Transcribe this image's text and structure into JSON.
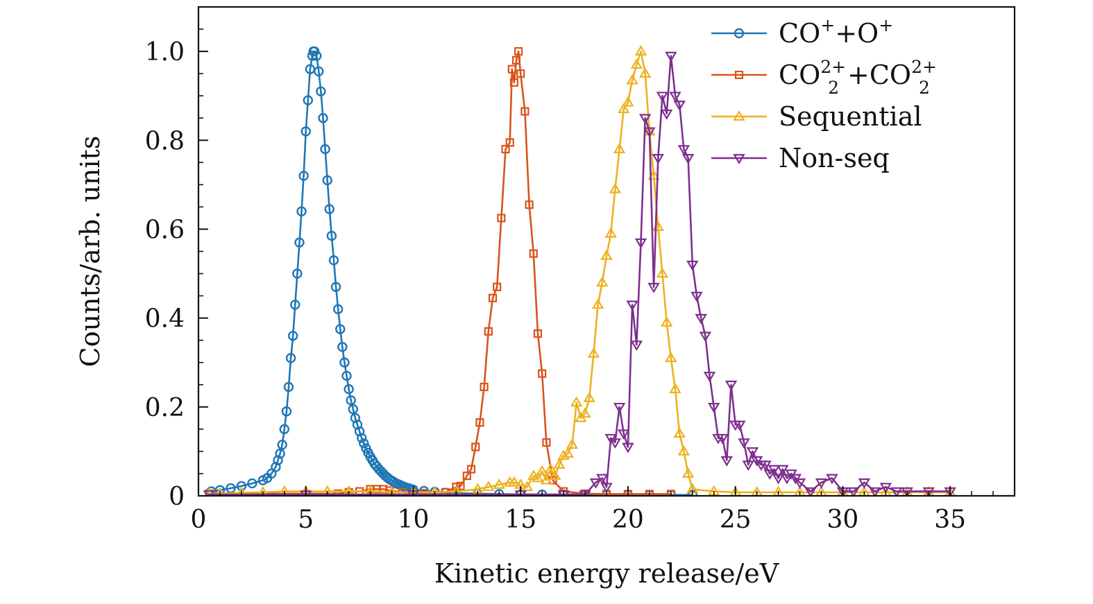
{
  "chart_data": {
    "type": "line",
    "xlabel": "Kinetic energy release/eV",
    "ylabel": "Counts/arb. units",
    "xlim": [
      0,
      38
    ],
    "ylim": [
      0,
      1.1
    ],
    "x_ticks": [
      0,
      5,
      10,
      15,
      20,
      25,
      30,
      35
    ],
    "y_ticks": [
      0,
      0.2,
      0.4,
      0.6,
      0.8,
      1.0
    ],
    "x_tick_labels": [
      "0",
      "5",
      "10",
      "15",
      "20",
      "25",
      "30",
      "35"
    ],
    "y_tick_labels": [
      "0",
      "0.2",
      "0.4",
      "0.6",
      "0.8",
      "1.0"
    ],
    "legend_position": "top-right",
    "grid": false,
    "series": [
      {
        "name": "CO⁺+O⁺",
        "legend": {
          "base": "CO",
          "sup1": "+",
          "mid": "+O",
          "sup2": "+"
        },
        "color": "#1f77b4",
        "marker": "circle",
        "x": [
          0.6,
          1.0,
          1.5,
          2.0,
          2.5,
          3.0,
          3.2,
          3.4,
          3.6,
          3.7,
          3.8,
          3.9,
          4.0,
          4.1,
          4.2,
          4.3,
          4.4,
          4.5,
          4.6,
          4.7,
          4.8,
          4.9,
          5.0,
          5.1,
          5.2,
          5.3,
          5.35,
          5.4,
          5.5,
          5.6,
          5.7,
          5.8,
          5.9,
          6.0,
          6.1,
          6.2,
          6.3,
          6.4,
          6.5,
          6.6,
          6.7,
          6.8,
          6.9,
          7.0,
          7.1,
          7.2,
          7.3,
          7.4,
          7.5,
          7.6,
          7.7,
          7.8,
          7.9,
          8.0,
          8.1,
          8.2,
          8.3,
          8.4,
          8.5,
          8.6,
          8.7,
          8.8,
          8.9,
          9.0,
          9.1,
          9.2,
          9.3,
          9.4,
          9.5,
          9.6,
          9.7,
          9.8,
          9.9,
          10.0,
          10.5,
          11.0,
          11.5,
          12.0,
          13,
          14,
          15,
          16,
          17,
          18,
          19,
          20,
          21,
          22,
          23
        ],
        "y": [
          0.01,
          0.013,
          0.017,
          0.022,
          0.028,
          0.035,
          0.04,
          0.05,
          0.065,
          0.08,
          0.095,
          0.115,
          0.15,
          0.19,
          0.245,
          0.31,
          0.36,
          0.43,
          0.5,
          0.57,
          0.64,
          0.72,
          0.82,
          0.89,
          0.96,
          0.99,
          1.0,
          1.0,
          0.99,
          0.955,
          0.91,
          0.85,
          0.78,
          0.71,
          0.645,
          0.585,
          0.53,
          0.47,
          0.42,
          0.375,
          0.335,
          0.3,
          0.27,
          0.24,
          0.215,
          0.195,
          0.175,
          0.16,
          0.145,
          0.13,
          0.118,
          0.107,
          0.097,
          0.088,
          0.08,
          0.072,
          0.066,
          0.06,
          0.055,
          0.05,
          0.045,
          0.041,
          0.037,
          0.034,
          0.031,
          0.028,
          0.026,
          0.024,
          0.022,
          0.02,
          0.018,
          0.017,
          0.015,
          0.014,
          0.011,
          0.009,
          0.007,
          0.006,
          0.005,
          0.004,
          0.003,
          0.003,
          0.003,
          0.003,
          0.002,
          0.002,
          0.002,
          0.002,
          0.002
        ]
      },
      {
        "name": "CO₂²⁺+CO₂²⁺",
        "legend": {
          "base": "CO",
          "sub": "2",
          "sup1": "2+",
          "mid": "+CO",
          "sub2": "2",
          "sup2": "2+"
        },
        "color": "#d95319",
        "marker": "square",
        "x": [
          0.5,
          6.5,
          7.0,
          7.5,
          8.0,
          8.3,
          8.6,
          8.9,
          9.5,
          10.5,
          11.5,
          12.0,
          12.2,
          12.5,
          12.7,
          12.9,
          13.1,
          13.3,
          13.5,
          13.7,
          13.9,
          14.1,
          14.3,
          14.5,
          14.6,
          14.7,
          14.8,
          14.9,
          15.0,
          15.2,
          15.4,
          15.6,
          15.8,
          16.0,
          16.2,
          16.5,
          17.0,
          18.0,
          19.0,
          20.0,
          21.0,
          22.0
        ],
        "y": [
          0.005,
          0.005,
          0.008,
          0.01,
          0.015,
          0.015,
          0.015,
          0.012,
          0.008,
          0.006,
          0.008,
          0.02,
          0.022,
          0.045,
          0.06,
          0.11,
          0.165,
          0.245,
          0.37,
          0.445,
          0.47,
          0.625,
          0.78,
          0.795,
          0.96,
          0.93,
          0.98,
          1.0,
          0.95,
          0.865,
          0.655,
          0.545,
          0.365,
          0.275,
          0.12,
          0.035,
          0.01,
          0.005,
          0.004,
          0.004,
          0.004,
          0.004
        ]
      },
      {
        "name": "Sequential",
        "legend": {
          "base": "Sequential"
        },
        "color": "#edb120",
        "marker": "triangle-up",
        "x": [
          0.5,
          1.0,
          2.0,
          3.0,
          4.0,
          5.0,
          6.0,
          7.0,
          8.0,
          9.0,
          10.0,
          11.0,
          12.0,
          13.0,
          13.5,
          14.0,
          14.5,
          14.7,
          15.0,
          15.3,
          15.6,
          15.8,
          16.0,
          16.2,
          16.4,
          16.6,
          16.8,
          17.0,
          17.2,
          17.4,
          17.6,
          17.8,
          18.0,
          18.2,
          18.4,
          18.6,
          18.8,
          19.0,
          19.2,
          19.4,
          19.6,
          19.8,
          20.0,
          20.2,
          20.4,
          20.6,
          20.8,
          21.0,
          21.2,
          21.4,
          21.6,
          21.8,
          22.0,
          22.2,
          22.4,
          22.6,
          22.8,
          23.0,
          24.0,
          25.0,
          26.0,
          27.0,
          28.0,
          29.0,
          30.0,
          31.0,
          32.0,
          33.0,
          34.0,
          35.0
        ],
        "y": [
          0.005,
          0.005,
          0.007,
          0.008,
          0.01,
          0.01,
          0.01,
          0.01,
          0.01,
          0.008,
          0.008,
          0.008,
          0.01,
          0.015,
          0.02,
          0.025,
          0.03,
          0.03,
          0.025,
          0.02,
          0.045,
          0.04,
          0.055,
          0.035,
          0.06,
          0.045,
          0.07,
          0.09,
          0.095,
          0.115,
          0.21,
          0.175,
          0.185,
          0.22,
          0.32,
          0.43,
          0.48,
          0.54,
          0.59,
          0.69,
          0.78,
          0.87,
          0.885,
          0.935,
          0.97,
          1.0,
          0.95,
          0.82,
          0.72,
          0.605,
          0.5,
          0.39,
          0.31,
          0.24,
          0.14,
          0.1,
          0.05,
          0.015,
          0.01,
          0.008,
          0.008,
          0.008,
          0.008,
          0.008,
          0.008,
          0.008,
          0.008,
          0.008,
          0.008,
          0.008
        ]
      },
      {
        "name": "Non-seq",
        "legend": {
          "base": "Non-seq"
        },
        "color": "#7e2f8e",
        "marker": "triangle-down",
        "x": [
          0.5,
          5.0,
          10.0,
          15.0,
          17.0,
          18.0,
          18.5,
          18.8,
          19.0,
          19.2,
          19.4,
          19.6,
          19.8,
          20.0,
          20.2,
          20.4,
          20.6,
          20.8,
          21.0,
          21.2,
          21.4,
          21.6,
          21.8,
          22.0,
          22.2,
          22.4,
          22.6,
          22.8,
          23.0,
          23.2,
          23.4,
          23.6,
          23.8,
          24.0,
          24.2,
          24.4,
          24.6,
          24.8,
          25.0,
          25.2,
          25.4,
          25.6,
          25.8,
          26.0,
          26.2,
          26.4,
          26.6,
          26.8,
          27.0,
          27.2,
          27.4,
          27.6,
          27.8,
          28.0,
          28.5,
          29.0,
          29.5,
          30.0,
          30.5,
          31.0,
          31.5,
          32.0,
          32.5,
          33.0,
          34.0,
          35.0
        ],
        "y": [
          0.003,
          0.003,
          0.003,
          0.003,
          0.003,
          0.003,
          0.03,
          0.04,
          0.02,
          0.13,
          0.12,
          0.2,
          0.14,
          0.11,
          0.43,
          0.34,
          0.57,
          0.85,
          0.82,
          0.47,
          0.76,
          0.9,
          0.86,
          0.99,
          0.9,
          0.88,
          0.78,
          0.76,
          0.52,
          0.45,
          0.4,
          0.36,
          0.27,
          0.2,
          0.13,
          0.13,
          0.08,
          0.25,
          0.16,
          0.16,
          0.12,
          0.07,
          0.1,
          0.08,
          0.07,
          0.07,
          0.05,
          0.06,
          0.04,
          0.06,
          0.04,
          0.05,
          0.04,
          0.03,
          0.01,
          0.03,
          0.04,
          0.01,
          0.01,
          0.03,
          0.01,
          0.02,
          0.01,
          0.01,
          0.01,
          0.01
        ]
      }
    ]
  }
}
